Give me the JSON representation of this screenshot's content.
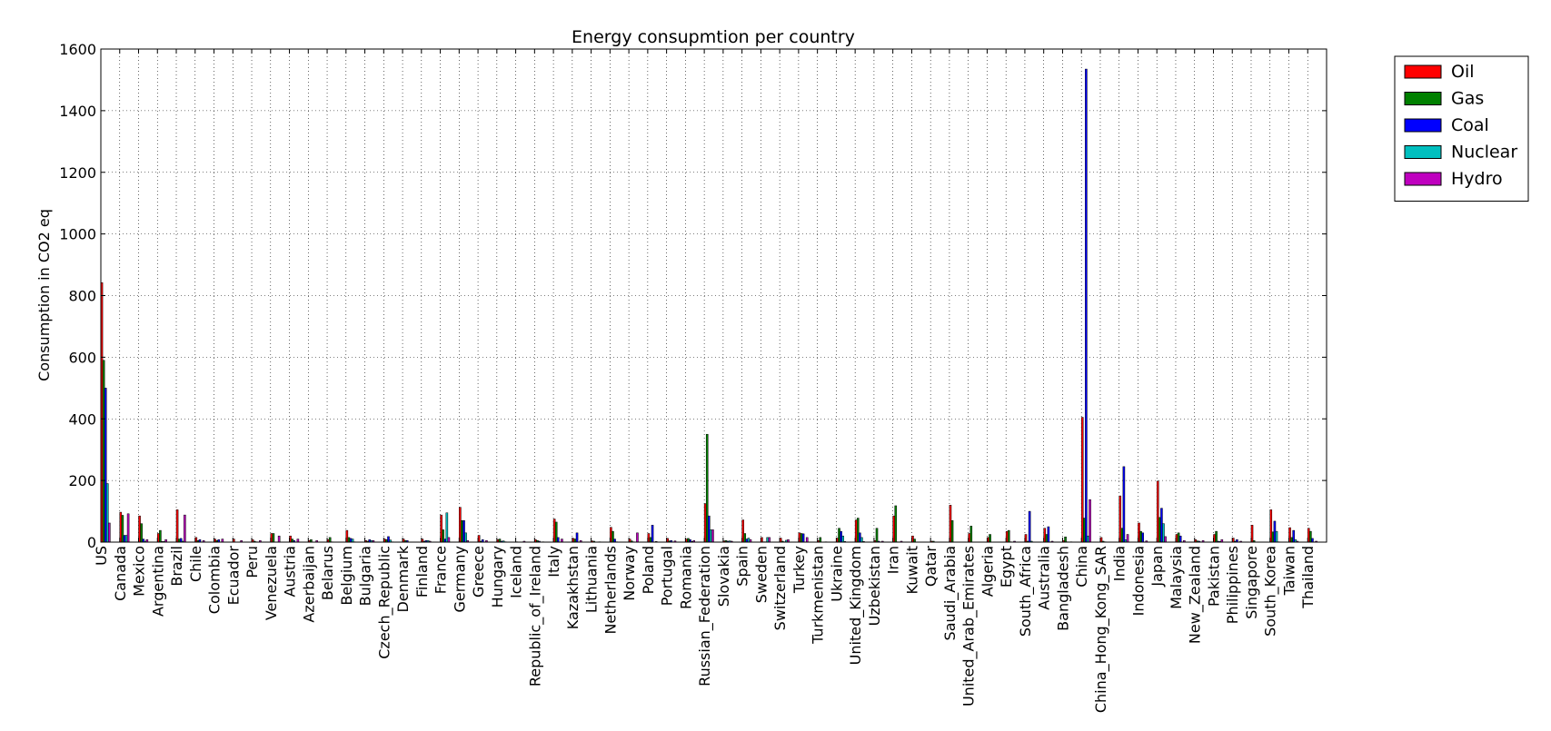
{
  "chart_data": {
    "type": "bar",
    "title": "Energy consupmtion per country",
    "xlabel": "",
    "ylabel": "Consumption in CO2 eq",
    "ylim": [
      0,
      1600
    ],
    "yticks": [
      0,
      200,
      400,
      600,
      800,
      1000,
      1200,
      1400,
      1600
    ],
    "grid": true,
    "legend_position": "outside-top-right",
    "categories": [
      "US",
      "Canada",
      "Mexico",
      "Argentina",
      "Brazil",
      "Chile",
      "Colombia",
      "Ecuador",
      "Peru",
      "Venezuela",
      "Austria",
      "Azerbaijan",
      "Belarus",
      "Belgium",
      "Bulgaria",
      "Czech_Republic",
      "Denmark",
      "Finland",
      "France",
      "Germany",
      "Greece",
      "Hungary",
      "Iceland",
      "Republic_of_Ireland",
      "Italy",
      "Kazakhstan",
      "Lithuania",
      "Netherlands",
      "Norway",
      "Poland",
      "Portugal",
      "Romania",
      "Russian_Federation",
      "Slovakia",
      "Spain",
      "Sweden",
      "Switzerland",
      "Turkey",
      "Turkmenistan",
      "Ukraine",
      "United_Kingdom",
      "Uzbekistan",
      "Iran",
      "Kuwait",
      "Qatar",
      "Saudi_Arabia",
      "United_Arab_Emirates",
      "Algeria",
      "Egypt",
      "South_Africa",
      "Australia",
      "Bangladesh",
      "China",
      "China_Hong_Kong_SAR",
      "India",
      "Indonesia",
      "Japan",
      "Malaysia",
      "New_Zealand",
      "Pakistan",
      "Philippines",
      "Singapore",
      "South_Korea",
      "Taiwan",
      "Thailand"
    ],
    "series": [
      {
        "name": "Oil",
        "color": "#ff0000",
        "values": [
          842,
          97,
          85,
          28,
          105,
          15,
          10,
          10,
          8,
          28,
          20,
          5,
          8,
          38,
          5,
          10,
          10,
          10,
          88,
          113,
          22,
          8,
          1,
          8,
          75,
          12,
          4,
          48,
          10,
          28,
          12,
          10,
          125,
          4,
          72,
          15,
          13,
          30,
          5,
          13,
          72,
          5,
          85,
          20,
          3,
          120,
          28,
          15,
          35,
          25,
          45,
          5,
          405,
          15,
          150,
          62,
          198,
          25,
          8,
          25,
          13,
          55,
          105,
          47,
          45
        ]
      },
      {
        "name": "Gas",
        "color": "#008000",
        "values": [
          590,
          87,
          60,
          38,
          10,
          5,
          5,
          0,
          3,
          28,
          10,
          8,
          15,
          15,
          3,
          8,
          5,
          3,
          40,
          70,
          3,
          10,
          0,
          5,
          65,
          10,
          3,
          35,
          4,
          15,
          4,
          12,
          350,
          5,
          28,
          1,
          3,
          28,
          15,
          45,
          78,
          45,
          118,
          10,
          3,
          70,
          52,
          25,
          38,
          3,
          25,
          17,
          78,
          3,
          45,
          35,
          80,
          30,
          4,
          35,
          3,
          5,
          33,
          15,
          35
        ]
      },
      {
        "name": "Coal",
        "color": "#0000ff",
        "values": [
          500,
          22,
          10,
          2,
          12,
          8,
          8,
          0,
          1,
          0,
          5,
          0,
          1,
          12,
          8,
          18,
          5,
          5,
          10,
          70,
          8,
          3,
          0,
          3,
          15,
          30,
          0,
          10,
          1,
          55,
          5,
          8,
          85,
          3,
          10,
          1,
          1,
          27,
          0,
          35,
          30,
          3,
          1,
          0,
          0,
          0,
          0,
          0,
          1,
          100,
          50,
          1,
          1535,
          1,
          245,
          30,
          110,
          20,
          3,
          3,
          8,
          0,
          68,
          38,
          12
        ]
      },
      {
        "name": "Nuclear",
        "color": "#00bfbf",
        "values": [
          190,
          22,
          3,
          2,
          3,
          0,
          0,
          0,
          0,
          0,
          0,
          0,
          0,
          10,
          5,
          7,
          0,
          5,
          95,
          30,
          0,
          4,
          0,
          0,
          0,
          0,
          0,
          1,
          0,
          0,
          0,
          2,
          40,
          4,
          13,
          15,
          6,
          0,
          0,
          20,
          15,
          0,
          0,
          0,
          0,
          0,
          0,
          0,
          0,
          3,
          0,
          0,
          20,
          0,
          8,
          0,
          60,
          0,
          0,
          2,
          0,
          0,
          35,
          8,
          0
        ]
      },
      {
        "name": "Hydro",
        "color": "#bf00bf",
        "values": [
          62,
          92,
          8,
          8,
          88,
          5,
          10,
          5,
          5,
          20,
          10,
          5,
          0,
          1,
          5,
          1,
          0,
          3,
          15,
          5,
          5,
          1,
          3,
          1,
          10,
          5,
          1,
          0,
          30,
          2,
          4,
          5,
          40,
          3,
          8,
          15,
          8,
          15,
          1,
          2,
          2,
          3,
          3,
          0,
          0,
          0,
          0,
          0,
          3,
          0,
          3,
          1,
          138,
          0,
          25,
          4,
          18,
          5,
          5,
          8,
          3,
          0,
          1,
          3,
          3
        ]
      }
    ]
  }
}
